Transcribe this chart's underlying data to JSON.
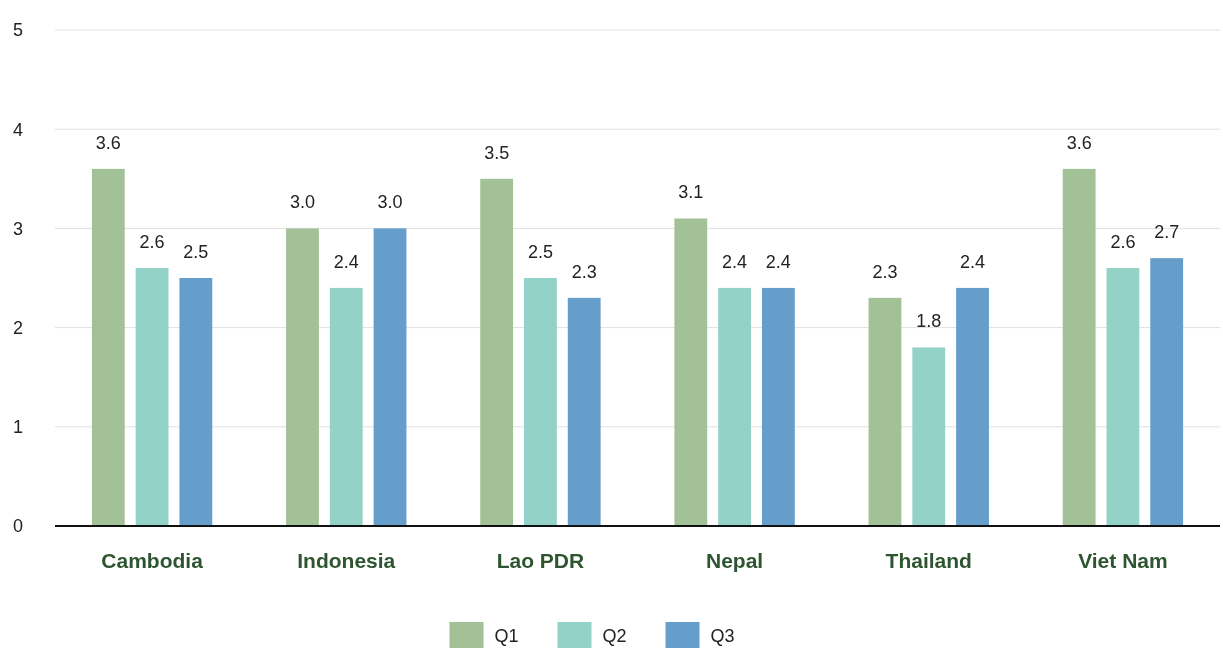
{
  "chart_data": {
    "type": "bar",
    "categories": [
      "Cambodia",
      "Indonesia",
      "Lao PDR",
      "Nepal",
      "Thailand",
      "Viet Nam"
    ],
    "series": [
      {
        "name": "Q1",
        "color": "#a3c197",
        "values": [
          3.6,
          3.0,
          3.5,
          3.1,
          2.3,
          3.6
        ],
        "value_labels": [
          "3.6",
          "3.0",
          "3.5",
          "3.1",
          "2.3",
          "3.6"
        ]
      },
      {
        "name": "Q2",
        "color": "#93d2c6",
        "values": [
          2.6,
          2.4,
          2.5,
          2.4,
          1.8,
          2.6
        ],
        "value_labels": [
          "2.6",
          "2.4",
          "2.5",
          "2.4",
          "1.8",
          "2.6"
        ]
      },
      {
        "name": "Q3",
        "color": "#659dcb",
        "values": [
          2.5,
          3.0,
          2.3,
          2.4,
          2.4,
          2.7
        ],
        "value_labels": [
          "2.5",
          "3.0",
          "2.3",
          "2.4",
          "2.4",
          "2.7"
        ]
      }
    ],
    "ylim": [
      0,
      5
    ],
    "yticks": [
      0,
      1,
      2,
      3,
      4,
      5
    ],
    "grid": "y",
    "legend": "bottom"
  }
}
